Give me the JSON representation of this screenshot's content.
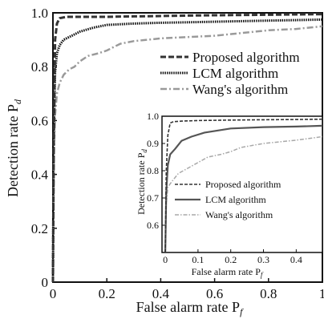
{
  "chart_data": [
    {
      "type": "line",
      "xlabel": "False alarm rate P",
      "xlabel_sub": "f",
      "ylabel": "Detection rate P",
      "ylabel_sub": "d",
      "xlim": [
        0,
        1
      ],
      "ylim": [
        0,
        1
      ],
      "xticks": [
        "0",
        "0.2",
        "0.4",
        "0.6",
        "0.8",
        "1"
      ],
      "yticks": [
        "0",
        "0.2",
        "0.4",
        "0.6",
        "0.8",
        "1.0"
      ],
      "grid": false,
      "legend_position": "upper-right",
      "series": [
        {
          "name": "Proposed algorithm",
          "color": "#333333",
          "style": "dashed",
          "x": [
            0,
            0.003,
            0.008,
            0.015,
            0.025,
            0.05,
            0.1,
            0.2,
            0.3,
            0.4,
            0.5,
            0.6,
            0.7,
            0.8,
            0.9,
            1.0
          ],
          "y": [
            0,
            0.5,
            0.9,
            0.96,
            0.98,
            0.985,
            0.985,
            0.985,
            0.987,
            0.988,
            0.99,
            0.991,
            0.992,
            0.993,
            0.994,
            0.995
          ]
        },
        {
          "name": "LCM algorithm",
          "color": "#111111",
          "style": "dotted-thick",
          "x": [
            0,
            0.003,
            0.008,
            0.015,
            0.025,
            0.04,
            0.06,
            0.08,
            0.1,
            0.15,
            0.2,
            0.3,
            0.4,
            0.5,
            0.6,
            0.7,
            0.8,
            0.9,
            1.0
          ],
          "y": [
            0,
            0.55,
            0.78,
            0.85,
            0.88,
            0.9,
            0.91,
            0.92,
            0.93,
            0.945,
            0.955,
            0.96,
            0.963,
            0.965,
            0.967,
            0.969,
            0.971,
            0.973,
            0.975
          ]
        },
        {
          "name": "Wang's algorithm",
          "color": "#9a9a9a",
          "style": "dash-dot",
          "x": [
            0,
            0.003,
            0.008,
            0.015,
            0.025,
            0.04,
            0.06,
            0.08,
            0.1,
            0.13,
            0.17,
            0.2,
            0.25,
            0.3,
            0.4,
            0.5,
            0.6,
            0.7,
            0.8,
            0.9,
            1.0
          ],
          "y": [
            0,
            0.45,
            0.62,
            0.7,
            0.74,
            0.77,
            0.79,
            0.8,
            0.82,
            0.84,
            0.85,
            0.86,
            0.885,
            0.895,
            0.905,
            0.91,
            0.915,
            0.925,
            0.935,
            0.94,
            0.95
          ]
        }
      ]
    },
    {
      "type": "line",
      "inset": true,
      "xlabel": "False alarm rate P",
      "xlabel_sub": "f",
      "ylabel": "Detection rate P",
      "ylabel_sub": "d",
      "xlim": [
        -0.01,
        0.48
      ],
      "ylim": [
        0.5,
        1.0
      ],
      "xticks": [
        {
          "v": 0,
          "label": "0"
        },
        {
          "v": 0.1,
          "label": "0.1"
        },
        {
          "v": 0.2,
          "label": "0.2"
        },
        {
          "v": 0.3,
          "label": "0.3"
        },
        {
          "v": 0.4,
          "label": "0.4"
        }
      ],
      "yticks": [
        {
          "v": 0.6,
          "label": "0.6"
        },
        {
          "v": 0.7,
          "label": "0.7"
        },
        {
          "v": 0.8,
          "label": "0.8"
        },
        {
          "v": 0.9,
          "label": "0.9"
        },
        {
          "v": 1.0,
          "label": "1.0"
        }
      ],
      "grid": false,
      "legend_position": "lower-right",
      "series": [
        {
          "name": "Proposed algorithm",
          "color": "#333333",
          "style": "dashed",
          "x": [
            0,
            0.003,
            0.008,
            0.015,
            0.025,
            0.05,
            0.1,
            0.2,
            0.3,
            0.4,
            0.48
          ],
          "y": [
            0.5,
            0.8,
            0.93,
            0.975,
            0.98,
            0.982,
            0.984,
            0.986,
            0.987,
            0.988,
            0.989
          ]
        },
        {
          "name": "LCM algorithm",
          "color": "#555555",
          "style": "solid-thick",
          "x": [
            0,
            0.003,
            0.008,
            0.015,
            0.03,
            0.05,
            0.08,
            0.12,
            0.2,
            0.3,
            0.4,
            0.48
          ],
          "y": [
            0.5,
            0.72,
            0.82,
            0.86,
            0.88,
            0.91,
            0.925,
            0.94,
            0.955,
            0.96,
            0.962,
            0.965
          ]
        },
        {
          "name": "Wang's algorithm",
          "color": "#a8a8a8",
          "style": "dash-dot",
          "x": [
            0,
            0.003,
            0.008,
            0.02,
            0.04,
            0.07,
            0.1,
            0.13,
            0.17,
            0.2,
            0.23,
            0.3,
            0.4,
            0.48
          ],
          "y": [
            0.5,
            0.68,
            0.74,
            0.76,
            0.79,
            0.81,
            0.83,
            0.85,
            0.86,
            0.87,
            0.885,
            0.9,
            0.912,
            0.925
          ]
        }
      ]
    }
  ]
}
